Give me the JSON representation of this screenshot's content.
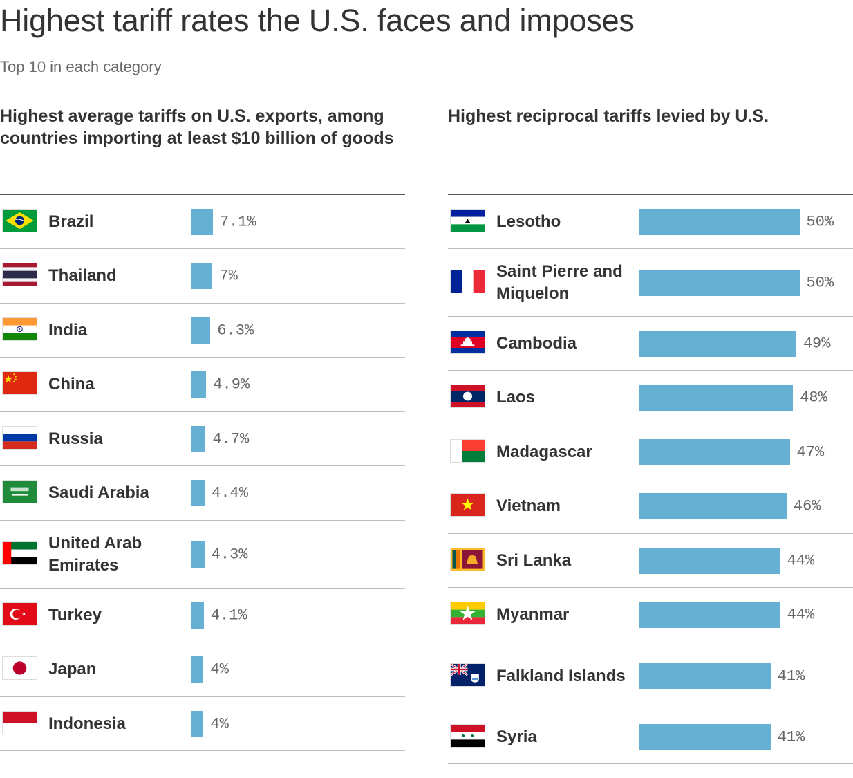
{
  "title": "Highest tariff rates the U.S. faces and imposes",
  "subtitle": "Top 10 in each category",
  "colors": {
    "bar": "#66b0d4",
    "text": "#333333",
    "value_text": "#666666"
  },
  "chart_data": [
    {
      "type": "bar",
      "title": "Highest average tariffs on U.S. exports, among countries importing at least $10 billion of goods",
      "xlim": [
        0,
        50
      ],
      "unit": "%",
      "categories": [
        "Brazil",
        "Thailand",
        "India",
        "China",
        "Russia",
        "Saudi Arabia",
        "United Arab Emirates",
        "Turkey",
        "Japan",
        "Indonesia"
      ],
      "values": [
        7.1,
        7,
        6.3,
        4.9,
        4.7,
        4.4,
        4.3,
        4.1,
        4,
        4
      ],
      "labels": [
        "7.1%",
        "7%",
        "6.3%",
        "4.9%",
        "4.7%",
        "4.4%",
        "4.3%",
        "4.1%",
        "4%",
        "4%"
      ],
      "flags": [
        "brazil-flag",
        "thailand-flag",
        "india-flag",
        "china-flag",
        "russia-flag",
        "saudi-arabia-flag",
        "uae-flag",
        "turkey-flag",
        "japan-flag",
        "indonesia-flag"
      ]
    },
    {
      "type": "bar",
      "title": "Highest reciprocal tariffs levied by U.S.",
      "xlim": [
        0,
        50
      ],
      "unit": "%",
      "categories": [
        "Lesotho",
        "Saint Pierre and Miquelon",
        "Cambodia",
        "Laos",
        "Madagascar",
        "Vietnam",
        "Sri Lanka",
        "Myanmar",
        "Falkland Islands",
        "Syria"
      ],
      "values": [
        50,
        50,
        49,
        48,
        47,
        46,
        44,
        44,
        41,
        41
      ],
      "labels": [
        "50%",
        "50%",
        "49%",
        "48%",
        "47%",
        "46%",
        "44%",
        "44%",
        "41%",
        "41%"
      ],
      "flags": [
        "lesotho-flag",
        "saint-pierre-miquelon-flag",
        "cambodia-flag",
        "laos-flag",
        "madagascar-flag",
        "vietnam-flag",
        "sri-lanka-flag",
        "myanmar-flag",
        "falkland-islands-flag",
        "syria-flag"
      ]
    }
  ]
}
